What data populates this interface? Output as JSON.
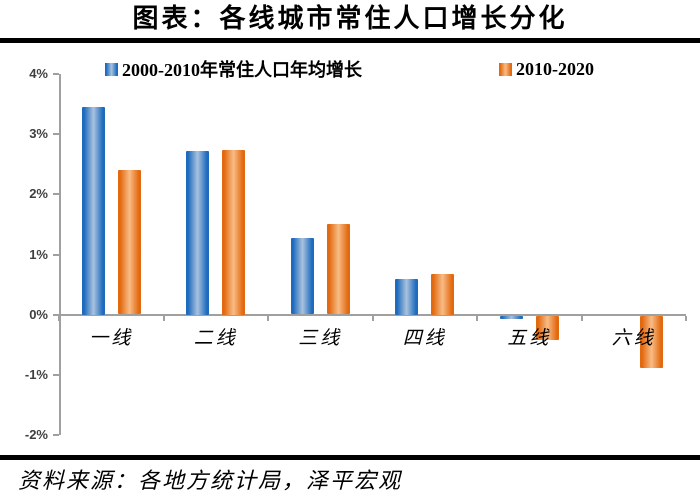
{
  "title": "图表：各线城市常住人口增长分化",
  "source": "资料来源：各地方统计局，泽平宏观",
  "legend": [
    {
      "label": "2000-2010年常住人口年均增长"
    },
    {
      "label": "2010-2020"
    }
  ],
  "colors": {
    "blue_edge": "#1e6bbd",
    "blue_mid": "#a9c2de",
    "orange_edge": "#e2690f",
    "orange_mid": "#f8bc86",
    "axis_gray": "#a0a0a0",
    "rule_black": "#000000"
  },
  "chart_data": {
    "type": "bar",
    "title": "图表：各线城市常住人口增长分化",
    "categories": [
      "一线",
      "二线",
      "三线",
      "四线",
      "五线",
      "六线"
    ],
    "series": [
      {
        "name": "2000-2010年常住人口年均增长",
        "values": [
          3.45,
          2.72,
          1.27,
          0.6,
          -0.05,
          0.0
        ]
      },
      {
        "name": "2010-2020",
        "values": [
          2.4,
          2.74,
          1.5,
          0.68,
          -0.4,
          -0.87
        ]
      }
    ],
    "y_ticks": [
      4,
      3,
      2,
      1,
      0,
      -1,
      -2
    ],
    "y_tick_labels": [
      "4%",
      "3%",
      "2%",
      "1%",
      "0%",
      "-1%",
      "-2%"
    ],
    "ylim": [
      -2,
      4
    ],
    "unit": "%",
    "grid": false,
    "legend_position": "top"
  }
}
